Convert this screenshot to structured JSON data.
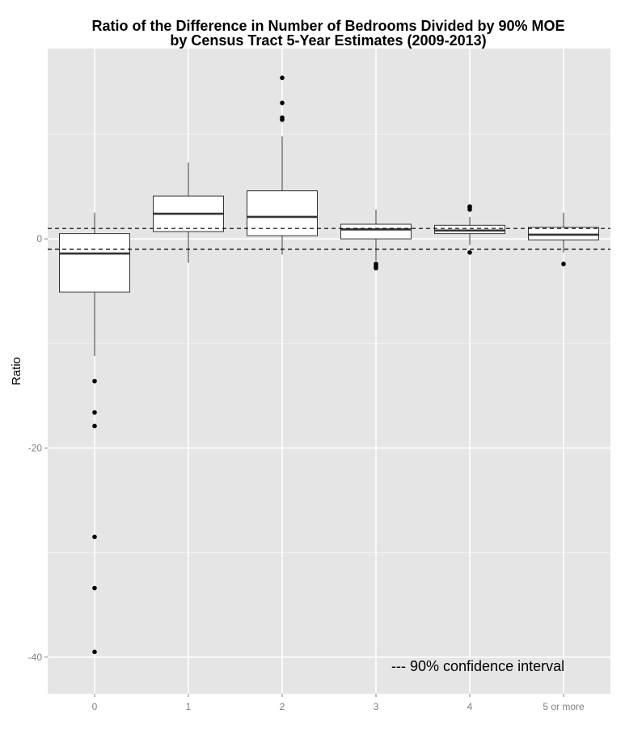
{
  "chart_data": {
    "type": "boxplot",
    "title_line1": "Ratio of the Difference in Number of Bedrooms Divided by 90% MOE",
    "title_line2": "by Census Tract 5-Year Estimates (2009-2013)",
    "xlabel": "",
    "ylabel": "Ratio",
    "categories": [
      "0",
      "1",
      "2",
      "3",
      "4",
      "5 or more"
    ],
    "ylim": [
      -43.5,
      18.2
    ],
    "yticks": [
      0,
      -20,
      -40
    ],
    "ytick_labels": [
      "0",
      "-20",
      "-40"
    ],
    "grid": true,
    "boxes": [
      {
        "category": "0",
        "whisker_low": -11.2,
        "q1": -5.1,
        "median": -1.4,
        "q3": 0.5,
        "whisker_high": 2.5,
        "outliers": [
          -13.6,
          -16.6,
          -17.9,
          -28.5,
          -33.4,
          -39.5
        ]
      },
      {
        "category": "1",
        "whisker_low": -2.3,
        "q1": 0.7,
        "median": 2.4,
        "q3": 4.1,
        "whisker_high": 7.3,
        "outliers": []
      },
      {
        "category": "2",
        "whisker_low": -1.5,
        "q1": 0.3,
        "median": 2.1,
        "q3": 4.6,
        "whisker_high": 9.8,
        "outliers": [
          15.4,
          13.0,
          11.6,
          11.4
        ]
      },
      {
        "category": "3",
        "whisker_low": -2.1,
        "q1": 0.0,
        "median": 0.9,
        "q3": 1.4,
        "whisker_high": 2.8,
        "outliers": [
          -2.4,
          -2.6,
          -2.8
        ]
      },
      {
        "category": "4",
        "whisker_low": -0.6,
        "q1": 0.5,
        "median": 0.8,
        "q3": 1.3,
        "whisker_high": 2.1,
        "outliers": [
          2.8,
          3.0,
          3.1,
          -1.3
        ]
      },
      {
        "category": "5 or more",
        "whisker_low": -1.3,
        "q1": -0.1,
        "median": 0.4,
        "q3": 1.1,
        "whisker_high": 2.5,
        "outliers": [
          -2.4
        ]
      }
    ],
    "reference_lines": [
      1.0,
      -1.0
    ],
    "annotation": "--- 90% confidence interval"
  }
}
